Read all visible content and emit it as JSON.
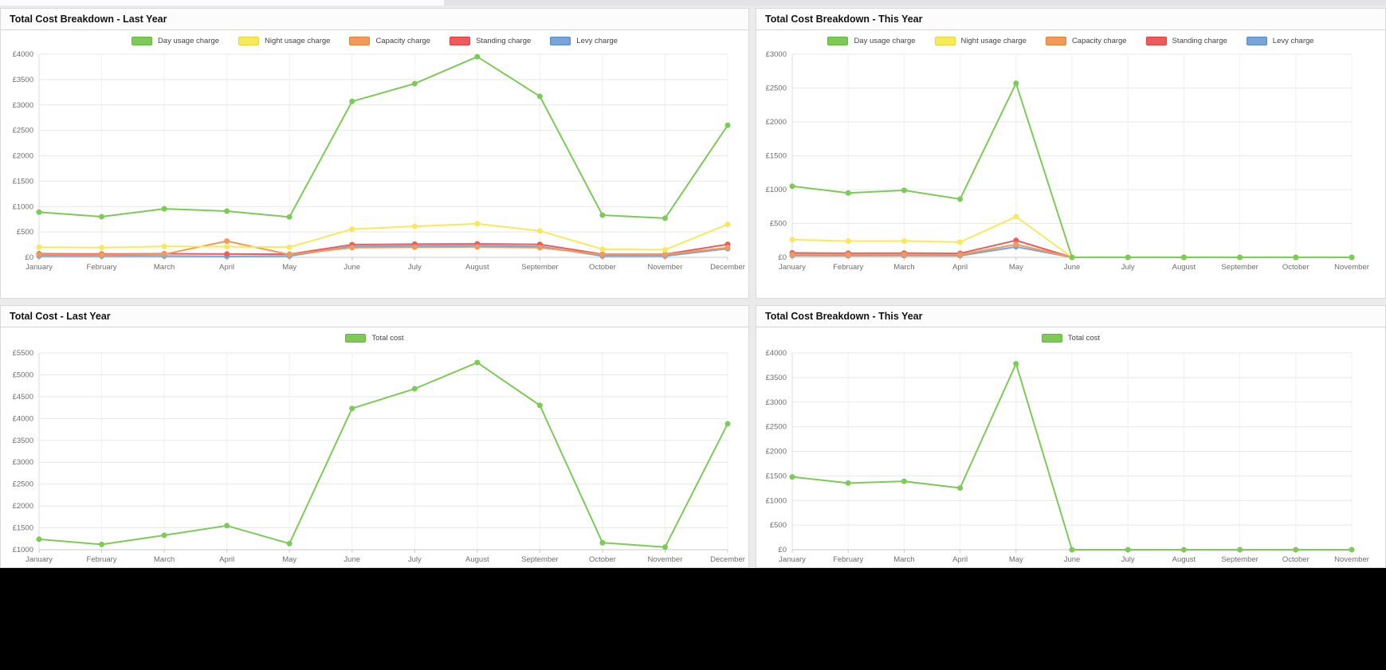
{
  "window": {
    "top_strip_left_color": "#fbfbfd",
    "top_strip_right_color": "#e4e4e6",
    "canvas_color": "#ebebeb",
    "footer_color": "#000000"
  },
  "colors": {
    "panel_bg": "#ffffff",
    "header_bg": "#fcfcfd",
    "header_border": "#d4d4d4",
    "title_text": "#141414",
    "hgrid": "#e8e8e8",
    "vgrid": "#f1f1f1",
    "axis_line": "#c9c9c9",
    "left_axis_line": "#dedede",
    "tick_text": "#6e6e6e",
    "legend_text": "#444444"
  },
  "panels": [
    {
      "title": "Total Cost Breakdown - Last Year"
    },
    {
      "title": "Total Cost Breakdown - This Year"
    },
    {
      "title": "Total Cost - Last Year"
    },
    {
      "title": "Total Cost Breakdown - This Year"
    }
  ],
  "chart_data": [
    {
      "type": "line",
      "title": "Total Cost Breakdown - Last Year",
      "legend_position": "top",
      "grid": true,
      "currency_prefix": "£",
      "categories": [
        "January",
        "February",
        "March",
        "April",
        "May",
        "June",
        "July",
        "August",
        "September",
        "October",
        "November",
        "December"
      ],
      "ylim": [
        0,
        4000
      ],
      "ystep": 500,
      "series": [
        {
          "name": "Day usage charge",
          "color": "#7DCB56",
          "swatch_border": "#62B93E",
          "values": [
            890,
            800,
            955,
            910,
            795,
            3070,
            3420,
            3950,
            3170,
            830,
            770,
            2600
          ]
        },
        {
          "name": "Night usage charge",
          "color": "#F6E95A",
          "swatch_border": "#E5D53A",
          "values": [
            200,
            190,
            215,
            210,
            200,
            555,
            610,
            660,
            520,
            160,
            150,
            650
          ]
        },
        {
          "name": "Capacity charge",
          "color": "#F19A59",
          "swatch_border": "#E08138",
          "values": [
            55,
            50,
            60,
            320,
            55,
            190,
            200,
            205,
            190,
            55,
            55,
            190
          ]
        },
        {
          "name": "Standing charge",
          "color": "#EE5B5B",
          "swatch_border": "#DB3E3E",
          "values": [
            70,
            65,
            70,
            65,
            60,
            250,
            260,
            265,
            255,
            60,
            60,
            255
          ]
        },
        {
          "name": "Levy charge",
          "color": "#77A5DB",
          "swatch_border": "#5789C7",
          "values": [
            25,
            25,
            25,
            20,
            25,
            215,
            225,
            230,
            215,
            25,
            25,
            170
          ]
        }
      ]
    },
    {
      "type": "line",
      "title": "Total Cost Breakdown - This Year",
      "legend_position": "top",
      "grid": true,
      "currency_prefix": "£",
      "categories": [
        "January",
        "February",
        "March",
        "April",
        "May",
        "June",
        "July",
        "August",
        "September",
        "October",
        "November"
      ],
      "ylim": [
        0,
        3000
      ],
      "ystep": 500,
      "series": [
        {
          "name": "Day usage charge",
          "color": "#7DCB56",
          "swatch_border": "#62B93E",
          "values": [
            1050,
            950,
            990,
            860,
            2570,
            0,
            0,
            0,
            0,
            0,
            0
          ]
        },
        {
          "name": "Night usage charge",
          "color": "#F6E95A",
          "swatch_border": "#E5D53A",
          "values": [
            260,
            240,
            240,
            225,
            600,
            0,
            0,
            0,
            0,
            0,
            0
          ]
        },
        {
          "name": "Capacity charge",
          "color": "#F19A59",
          "swatch_border": "#E08138",
          "values": [
            40,
            38,
            40,
            38,
            190,
            0,
            0,
            0,
            0,
            0,
            0
          ]
        },
        {
          "name": "Standing charge",
          "color": "#EE5B5B",
          "swatch_border": "#DB3E3E",
          "values": [
            65,
            60,
            62,
            58,
            250,
            0,
            0,
            0,
            0,
            0,
            0
          ]
        },
        {
          "name": "Levy charge",
          "color": "#77A5DB",
          "swatch_border": "#5789C7",
          "values": [
            25,
            24,
            25,
            24,
            155,
            0,
            0,
            0,
            0,
            0,
            0
          ]
        }
      ]
    },
    {
      "type": "line",
      "title": "Total Cost - Last Year",
      "legend_position": "top",
      "grid": true,
      "currency_prefix": "£",
      "categories": [
        "January",
        "February",
        "March",
        "April",
        "May",
        "June",
        "July",
        "August",
        "September",
        "October",
        "November",
        "December"
      ],
      "ylim": [
        1000,
        5500
      ],
      "ystep": 500,
      "series": [
        {
          "name": "Total cost",
          "color": "#7DCB56",
          "swatch_border": "#62B93E",
          "values": [
            1240,
            1120,
            1330,
            1550,
            1140,
            4230,
            4680,
            5280,
            4300,
            1160,
            1060,
            3880
          ]
        }
      ]
    },
    {
      "type": "line",
      "title": "Total Cost Breakdown - This Year",
      "legend_position": "top",
      "grid": true,
      "currency_prefix": "£",
      "categories": [
        "January",
        "February",
        "March",
        "April",
        "May",
        "June",
        "July",
        "August",
        "September",
        "October",
        "November"
      ],
      "ylim": [
        0,
        4000
      ],
      "ystep": 500,
      "series": [
        {
          "name": "Total cost",
          "color": "#7DCB56",
          "swatch_border": "#62B93E",
          "values": [
            1480,
            1355,
            1390,
            1255,
            3780,
            0,
            0,
            0,
            0,
            0,
            0
          ]
        }
      ]
    }
  ]
}
